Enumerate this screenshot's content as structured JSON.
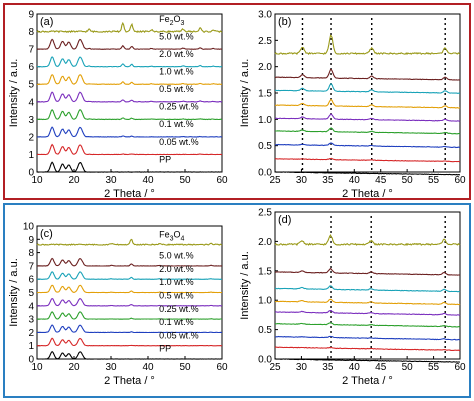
{
  "panel_frames": {
    "top_color": "#b21f24",
    "bottom_color": "#2a7fc1"
  },
  "series_colors": [
    "#000000",
    "#d62728",
    "#1f3fbf",
    "#2ca02c",
    "#7b2fbe",
    "#e3a009",
    "#1aa3b8",
    "#6b2020",
    "#9a9a1a"
  ],
  "chart_data": [
    {
      "panel_label": "(a)",
      "type": "line",
      "xlabel": "2 Theta / °",
      "ylabel": "Intensity / a.u.",
      "xlim": [
        10,
        60
      ],
      "ylim": [
        0,
        9
      ],
      "xticks": [
        10,
        20,
        30,
        40,
        50,
        60
      ],
      "yticks": [
        0,
        1,
        2,
        3,
        4,
        5,
        6,
        7,
        8,
        9
      ],
      "grid": false,
      "legend": "inline labels, right of curves",
      "series_labels": [
        "PP",
        "0.05 wt.%",
        "0.1 wt.%",
        "0.25 wt.%",
        "0.5 wt.%",
        "1.0 wt.%",
        "2.0 wt.%",
        "5.0 wt.%",
        "Fe2O3"
      ],
      "offsets": [
        0,
        1,
        2,
        3,
        4,
        5,
        6,
        7,
        8
      ],
      "pp_peaks": [
        [
          14.1,
          0.55
        ],
        [
          16.9,
          0.45
        ],
        [
          18.6,
          0.4
        ],
        [
          21.4,
          0.35
        ],
        [
          22.0,
          0.3
        ]
      ],
      "additive_peaks": [
        [
          24.1,
          0.12
        ],
        [
          33.2,
          0.5
        ],
        [
          35.6,
          0.4
        ],
        [
          40.9,
          0.1
        ],
        [
          49.5,
          0.15
        ],
        [
          54.1,
          0.2
        ],
        [
          57.6,
          0.1
        ]
      ],
      "additive_name": "Fe2O3"
    },
    {
      "panel_label": "(b)",
      "type": "line",
      "xlabel": "2 Theta / °",
      "ylabel": "Intensity / a.u.",
      "xlim": [
        25,
        60
      ],
      "ylim": [
        0,
        3.0
      ],
      "xticks": [
        25,
        30,
        35,
        40,
        45,
        50,
        55,
        60
      ],
      "yticks": [
        0.0,
        0.5,
        1.0,
        1.5,
        2.0,
        2.5,
        3.0
      ],
      "grid": false,
      "offsets": [
        0.0,
        0.25,
        0.52,
        0.78,
        1.02,
        1.27,
        1.55,
        1.8,
        2.25
      ],
      "dotted_lines_x": [
        30.2,
        35.6,
        43.3,
        57.2
      ],
      "peaks": [
        [
          30.2,
          0.12
        ],
        [
          35.6,
          0.35
        ],
        [
          43.3,
          0.1
        ],
        [
          57.2,
          0.1
        ]
      ]
    },
    {
      "panel_label": "(c)",
      "type": "line",
      "xlabel": "2 Theta / °",
      "ylabel": "Intensity / a.u.",
      "xlim": [
        10,
        60
      ],
      "ylim": [
        0,
        10
      ],
      "xticks": [
        10,
        20,
        30,
        40,
        50,
        60
      ],
      "yticks": [
        0,
        1,
        2,
        3,
        4,
        5,
        6,
        7,
        8,
        9,
        10
      ],
      "grid": false,
      "legend": "inline labels, right of curves",
      "series_labels": [
        "PP",
        "0.05 wt.%",
        "0.1 wt.%",
        "0.25 wt.%",
        "0.5 wt.%",
        "1.0 wt.%",
        "2.0 wt.%",
        "5.0 wt.%",
        "Fe3O4"
      ],
      "offsets": [
        0,
        1,
        2,
        3,
        4,
        5,
        6,
        7,
        8.6
      ],
      "pp_peaks": [
        [
          14.1,
          0.55
        ],
        [
          16.9,
          0.45
        ],
        [
          18.6,
          0.4
        ],
        [
          21.4,
          0.35
        ],
        [
          22.0,
          0.3
        ]
      ],
      "additive_peaks": [
        [
          30.1,
          0.1
        ],
        [
          35.5,
          0.4
        ],
        [
          43.1,
          0.1
        ],
        [
          57.0,
          0.12
        ]
      ],
      "additive_name": "Fe3O4"
    },
    {
      "panel_label": "(d)",
      "type": "line",
      "xlabel": "2 Theta / °",
      "ylabel": "Intensity / a.u.",
      "xlim": [
        25,
        60
      ],
      "ylim": [
        0,
        2.5
      ],
      "xticks": [
        25,
        30,
        35,
        40,
        45,
        50,
        55,
        60
      ],
      "yticks": [
        0.0,
        0.5,
        1.0,
        1.5,
        2.0,
        2.5
      ],
      "grid": false,
      "offsets": [
        0.0,
        0.2,
        0.38,
        0.6,
        0.8,
        0.98,
        1.2,
        1.48,
        1.95
      ],
      "dotted_lines_x": [
        35.6,
        43.2,
        57.2
      ],
      "peaks": [
        [
          30.1,
          0.06
        ],
        [
          35.5,
          0.15
        ],
        [
          43.2,
          0.06
        ],
        [
          57.0,
          0.08
        ]
      ]
    }
  ]
}
